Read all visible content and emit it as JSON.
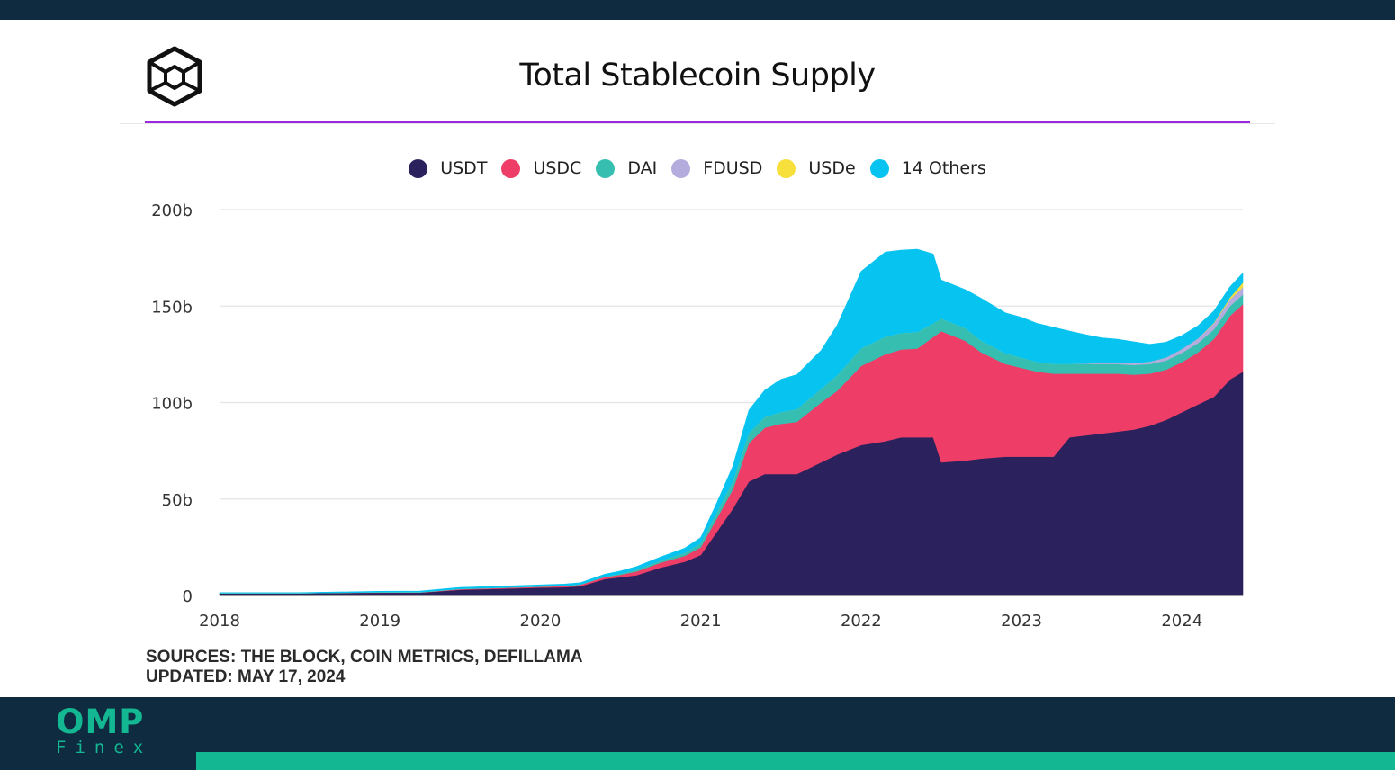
{
  "chart_data": {
    "type": "area",
    "stacked": true,
    "title": "Total Stablecoin Supply",
    "xlabel": "",
    "ylabel": "",
    "ylim": [
      0,
      200
    ],
    "y_ticks": [
      {
        "value": 0,
        "label": "0"
      },
      {
        "value": 50,
        "label": "50b"
      },
      {
        "value": 100,
        "label": "100b"
      },
      {
        "value": 150,
        "label": "150b"
      },
      {
        "value": 200,
        "label": "200b"
      }
    ],
    "x_range": [
      2018.0,
      2024.38
    ],
    "x_ticks": [
      {
        "value": 2018,
        "label": "2018"
      },
      {
        "value": 2019,
        "label": "2019"
      },
      {
        "value": 2020,
        "label": "2020"
      },
      {
        "value": 2021,
        "label": "2021"
      },
      {
        "value": 2022,
        "label": "2022"
      },
      {
        "value": 2023,
        "label": "2023"
      },
      {
        "value": 2024,
        "label": "2024"
      }
    ],
    "grid": true,
    "legend_position": "top-center",
    "x": [
      2018.0,
      2018.5,
      2019.0,
      2019.25,
      2019.5,
      2019.75,
      2020.0,
      2020.15,
      2020.25,
      2020.4,
      2020.5,
      2020.6,
      2020.75,
      2020.9,
      2021.0,
      2021.1,
      2021.2,
      2021.3,
      2021.4,
      2021.5,
      2021.6,
      2021.75,
      2021.85,
      2022.0,
      2022.15,
      2022.25,
      2022.35,
      2022.45,
      2022.5,
      2022.65,
      2022.75,
      2022.9,
      2023.0,
      2023.1,
      2023.2,
      2023.3,
      2023.4,
      2023.5,
      2023.6,
      2023.7,
      2023.8,
      2023.9,
      2024.0,
      2024.1,
      2024.2,
      2024.3,
      2024.38
    ],
    "series": [
      {
        "name": "USDT",
        "color": "#2b215c",
        "values": [
          1.2,
          1.2,
          1.5,
          1.5,
          3.0,
          3.5,
          4.1,
          4.3,
          4.8,
          8.5,
          9.5,
          10.5,
          14.5,
          17.5,
          21,
          33,
          45,
          59,
          63,
          63,
          63,
          69,
          73,
          78,
          80,
          82,
          82,
          82,
          69,
          70,
          71,
          72,
          72,
          72,
          72,
          82,
          83,
          84,
          85,
          86,
          88,
          91,
          95,
          99,
          103,
          112,
          116
        ]
      },
      {
        "name": "USDC",
        "color": "#ee3e67",
        "values": [
          0,
          0,
          0.1,
          0.1,
          0.3,
          0.4,
          0.4,
          0.6,
          0.8,
          1.0,
          1.2,
          2.0,
          2.5,
          3.0,
          4.0,
          7.0,
          10.0,
          20.0,
          24.0,
          26.0,
          27.0,
          31.0,
          33.0,
          41.0,
          45.0,
          45.5,
          46.0,
          52.0,
          68.0,
          62.0,
          55.0,
          48.0,
          46.0,
          44.0,
          43.0,
          33.0,
          32.0,
          31.0,
          30.0,
          28.5,
          27.0,
          26.0,
          26.0,
          27.0,
          30.0,
          33.0,
          35.0
        ]
      },
      {
        "name": "DAI",
        "color": "#36bfb1",
        "values": [
          0,
          0,
          0.1,
          0.1,
          0.1,
          0.1,
          0.1,
          0.1,
          0.1,
          0.2,
          0.5,
          0.8,
          1.0,
          1.5,
          2.0,
          3.0,
          4.0,
          5.0,
          5.5,
          6.0,
          6.5,
          7.0,
          8.0,
          9.0,
          9.0,
          8.5,
          8.5,
          7.0,
          6.5,
          6.5,
          6.0,
          5.5,
          5.2,
          5.0,
          5.0,
          5.0,
          5.0,
          5.0,
          5.0,
          5.0,
          5.0,
          4.8,
          4.8,
          4.8,
          5.0,
          5.0,
          5.0
        ]
      },
      {
        "name": "FDUSD",
        "color": "#b4acdc",
        "values": [
          0,
          0,
          0,
          0,
          0,
          0,
          0,
          0,
          0,
          0,
          0,
          0,
          0,
          0,
          0,
          0,
          0,
          0,
          0,
          0,
          0,
          0,
          0,
          0,
          0,
          0,
          0,
          0,
          0,
          0,
          0,
          0,
          0,
          0,
          0,
          0,
          0.2,
          0.5,
          0.8,
          1.0,
          1.2,
          1.5,
          2.0,
          2.5,
          3.2,
          3.5,
          3.8
        ]
      },
      {
        "name": "USDe",
        "color": "#f7df3c",
        "values": [
          0,
          0,
          0,
          0,
          0,
          0,
          0,
          0,
          0,
          0,
          0,
          0,
          0,
          0,
          0,
          0,
          0,
          0,
          0,
          0,
          0,
          0,
          0,
          0,
          0,
          0,
          0,
          0,
          0,
          0,
          0,
          0,
          0,
          0,
          0,
          0,
          0,
          0,
          0,
          0,
          0,
          0,
          0,
          0,
          0.3,
          1.0,
          2.4
        ]
      },
      {
        "name": "14 Others",
        "color": "#07c3ef",
        "values": [
          0.3,
          0.3,
          0.5,
          0.6,
          0.8,
          0.8,
          0.9,
          0.9,
          0.9,
          1.3,
          1.5,
          1.7,
          2.0,
          2.5,
          3.0,
          5.0,
          8.0,
          12.0,
          14.0,
          17.0,
          18.0,
          20.0,
          26.0,
          40.0,
          44.0,
          43.0,
          43.0,
          36.0,
          20.0,
          20.0,
          22.0,
          21.0,
          21.0,
          20.0,
          19.0,
          17.0,
          15.0,
          13.0,
          12.0,
          11.0,
          9.0,
          8.0,
          7.0,
          6.5,
          6.0,
          5.5,
          5.0
        ]
      }
    ]
  },
  "sources": {
    "line1": "SOURCES: THE BLOCK, COIN METRICS, DEFILLAMA",
    "line2": "UPDATED: MAY 17, 2024"
  },
  "brand": {
    "name": "OMP",
    "sub": "Finex",
    "color": "#13b792"
  },
  "colors": {
    "header_footer": "#0f2b40",
    "title_rule": "#9b28e0"
  }
}
